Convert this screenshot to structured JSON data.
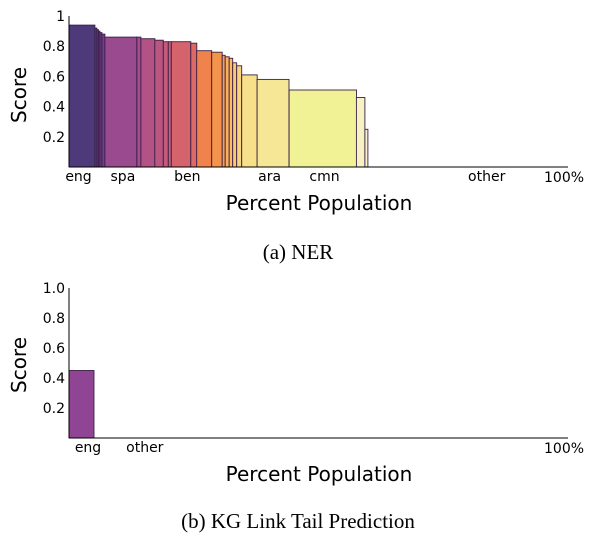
{
  "chart_data": [
    {
      "type": "bar",
      "caption": "(a) NER",
      "xlabel": "Percent Population",
      "ylabel": "Score",
      "ylim": [
        0,
        1.0
      ],
      "yticks": [
        "0.2",
        "0.4",
        "0.6",
        "0.8",
        "1"
      ],
      "xend_label": "100%",
      "x_range": [
        0,
        100
      ],
      "bars": [
        {
          "x0": 0.0,
          "x1": 5.2,
          "value": 0.94,
          "color": "#4e3a7a"
        },
        {
          "x0": 5.2,
          "x1": 5.6,
          "value": 0.92,
          "color": "#57397e"
        },
        {
          "x0": 5.6,
          "x1": 5.9,
          "value": 0.91,
          "color": "#5e3a82"
        },
        {
          "x0": 5.9,
          "x1": 6.2,
          "value": 0.9,
          "color": "#653b85"
        },
        {
          "x0": 6.2,
          "x1": 6.6,
          "value": 0.89,
          "color": "#6c3c88"
        },
        {
          "x0": 6.6,
          "x1": 7.2,
          "value": 0.88,
          "color": "#733d8a"
        },
        {
          "x0": 7.2,
          "x1": 13.6,
          "value": 0.86,
          "color": "#9a4b8f"
        },
        {
          "x0": 13.6,
          "x1": 14.4,
          "value": 0.86,
          "color": "#a34d8c"
        },
        {
          "x0": 14.4,
          "x1": 17.2,
          "value": 0.85,
          "color": "#b25285"
        },
        {
          "x0": 17.2,
          "x1": 18.9,
          "value": 0.84,
          "color": "#bb5680"
        },
        {
          "x0": 18.9,
          "x1": 19.9,
          "value": 0.83,
          "color": "#c45b7a"
        },
        {
          "x0": 19.9,
          "x1": 20.5,
          "value": 0.83,
          "color": "#cb5e75"
        },
        {
          "x0": 20.5,
          "x1": 24.4,
          "value": 0.83,
          "color": "#d4636b"
        },
        {
          "x0": 24.4,
          "x1": 25.6,
          "value": 0.82,
          "color": "#dc6964"
        },
        {
          "x0": 25.6,
          "x1": 28.6,
          "value": 0.77,
          "color": "#f0834c"
        },
        {
          "x0": 28.6,
          "x1": 30.7,
          "value": 0.76,
          "color": "#f4944a"
        },
        {
          "x0": 30.7,
          "x1": 31.3,
          "value": 0.74,
          "color": "#f6a252"
        },
        {
          "x0": 31.3,
          "x1": 32.1,
          "value": 0.73,
          "color": "#f8b05c"
        },
        {
          "x0": 32.1,
          "x1": 32.8,
          "value": 0.72,
          "color": "#f9bd67"
        },
        {
          "x0": 32.8,
          "x1": 33.6,
          "value": 0.69,
          "color": "#fac974"
        },
        {
          "x0": 33.6,
          "x1": 34.6,
          "value": 0.67,
          "color": "#f9d47f"
        },
        {
          "x0": 34.6,
          "x1": 37.7,
          "value": 0.61,
          "color": "#f8df8a"
        },
        {
          "x0": 37.7,
          "x1": 44.1,
          "value": 0.58,
          "color": "#f5e796"
        },
        {
          "x0": 44.1,
          "x1": 57.6,
          "value": 0.51,
          "color": "#f1f296"
        },
        {
          "x0": 57.6,
          "x1": 59.3,
          "value": 0.46,
          "color": "#f7f2c2"
        },
        {
          "x0": 59.3,
          "x1": 59.9,
          "value": 0.25,
          "color": "#fbf3d5"
        }
      ],
      "categories": [
        {
          "label": "eng",
          "x": 1.9
        },
        {
          "label": "spa",
          "x": 10.8
        },
        {
          "label": "ben",
          "x": 23.7
        },
        {
          "label": "ara",
          "x": 40.2
        },
        {
          "label": "cmn",
          "x": 51.2
        },
        {
          "label": "other",
          "x": 83.7
        }
      ]
    },
    {
      "type": "bar",
      "caption": "(b) KG Link Tail Prediction",
      "xlabel": "Percent Population",
      "ylabel": "Score",
      "ylim": [
        0,
        1.0
      ],
      "yticks": [
        "0.2",
        "0.4",
        "0.6",
        "0.8",
        "1.0"
      ],
      "xend_label": "100%",
      "x_range": [
        0,
        100
      ],
      "bars": [
        {
          "x0": 0.0,
          "x1": 5.0,
          "value": 0.45,
          "color": "#8f4594"
        }
      ],
      "categories": [
        {
          "label": "eng",
          "x": 3.8
        },
        {
          "label": "other",
          "x": 15.2
        }
      ]
    }
  ]
}
